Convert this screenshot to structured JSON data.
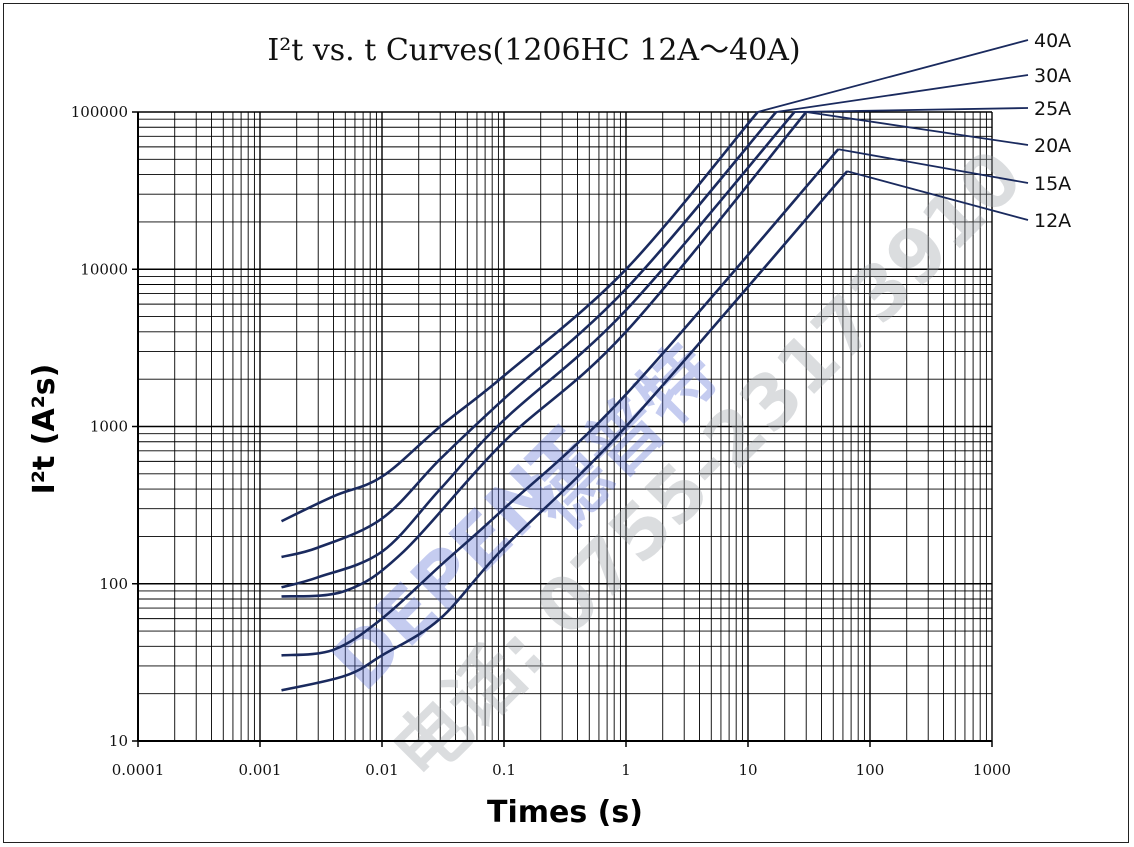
{
  "chart_data": {
    "type": "line",
    "title": "I²t vs.  t Curves(1206HC 12A～40A)",
    "xlabel": "Times (s)",
    "ylabel": "I²t (A²s)",
    "x_scale": "log",
    "y_scale": "log",
    "xlim": [
      0.0001,
      1000
    ],
    "ylim": [
      10,
      100000
    ],
    "x_ticks": [
      "0.0001",
      "0.001",
      "0.01",
      "0.1",
      "1",
      "10",
      "100",
      "1000"
    ],
    "y_ticks": [
      "10",
      "100",
      "1000",
      "10000",
      "100000"
    ],
    "grid": true,
    "line_color": "#1a2a5e",
    "series": [
      {
        "name": "40A",
        "points": [
          [
            0.0015,
            250
          ],
          [
            0.004,
            360
          ],
          [
            0.01,
            480
          ],
          [
            0.03,
            1000
          ],
          [
            0.1,
            2100
          ],
          [
            1,
            10000
          ],
          [
            12,
            100000
          ]
        ]
      },
      {
        "name": "30A",
        "points": [
          [
            0.0015,
            148
          ],
          [
            0.003,
            170
          ],
          [
            0.01,
            260
          ],
          [
            0.03,
            620
          ],
          [
            0.1,
            1500
          ],
          [
            1,
            7500
          ],
          [
            17,
            100000
          ]
        ]
      },
      {
        "name": "25A",
        "points": [
          [
            0.0015,
            95
          ],
          [
            0.003,
            110
          ],
          [
            0.01,
            160
          ],
          [
            0.03,
            400
          ],
          [
            0.1,
            1100
          ],
          [
            1,
            5500
          ],
          [
            24,
            100000
          ]
        ]
      },
      {
        "name": "20A",
        "points": [
          [
            0.0015,
            83
          ],
          [
            0.005,
            90
          ],
          [
            0.015,
            160
          ],
          [
            0.1,
            800
          ],
          [
            1,
            4000
          ],
          [
            30,
            100000
          ]
        ]
      },
      {
        "name": "15A",
        "points": [
          [
            0.0015,
            35
          ],
          [
            0.004,
            38
          ],
          [
            0.01,
            60
          ],
          [
            0.03,
            130
          ],
          [
            0.1,
            300
          ],
          [
            1,
            1600
          ],
          [
            55,
            58000
          ]
        ]
      },
      {
        "name": "12A",
        "points": [
          [
            0.0015,
            21
          ],
          [
            0.005,
            26
          ],
          [
            0.01,
            35
          ],
          [
            0.03,
            60
          ],
          [
            0.1,
            170
          ],
          [
            1,
            1000
          ],
          [
            65,
            42000
          ]
        ]
      }
    ],
    "watermark": {
      "brand": "DEPENT",
      "chinese": "德普特",
      "phone": "电话: 0755-23173910"
    }
  }
}
